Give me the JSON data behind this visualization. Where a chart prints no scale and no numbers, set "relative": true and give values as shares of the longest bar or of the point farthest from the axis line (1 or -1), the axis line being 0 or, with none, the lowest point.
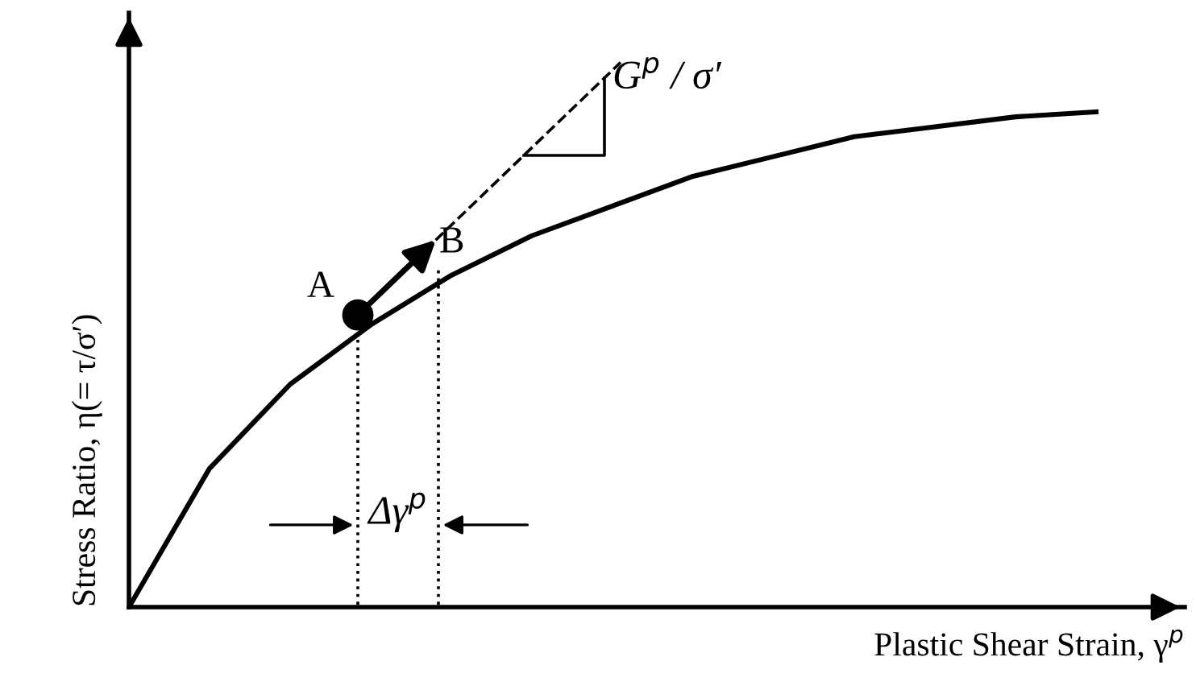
{
  "chart_data": {
    "type": "line",
    "relative": true,
    "xlabel": "Plastic Shear Strain, γ$^{p}$",
    "ylabel": "Stress Ratio, η(= τ/σ′)",
    "categories": [
      null,
      null,
      null,
      null,
      null,
      null,
      null,
      null,
      null,
      null,
      null,
      null,
      null
    ],
    "series": [
      {
        "color": "#000000",
        "values": [
          0,
          0.28,
          0.45,
          0.57,
          0.67,
          0.75,
          0.81,
          0.87,
          0.91,
          0.95,
          0.97,
          0.99,
          1
        ]
      }
    ],
    "annotations": [
      "A",
      "B",
      "G$^{p}$ / σ′",
      "Δγ$^{p}$"
    ],
    "marker": "none",
    "line_style": "solid"
  }
}
